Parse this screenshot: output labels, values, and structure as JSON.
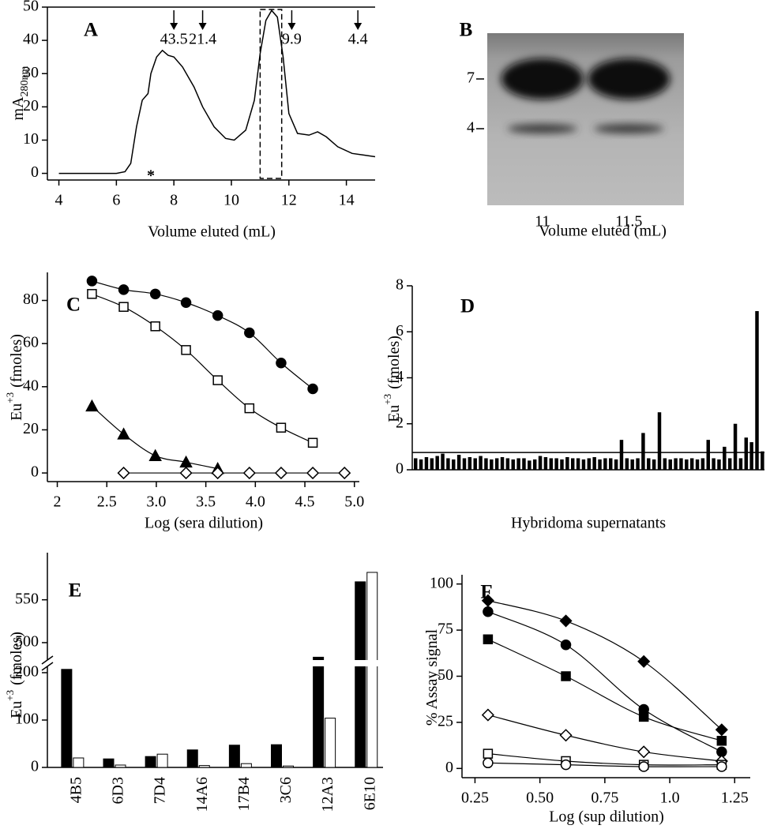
{
  "chart_data": [
    {
      "type": "line",
      "label": "A",
      "ylabel": "mA",
      "ylabel_sub": "280nm",
      "xlabel": "Volume eluted (mL)",
      "x": [
        4,
        5,
        6,
        6.3,
        6.5,
        6.7,
        6.9,
        7.1,
        7.2,
        7.4,
        7.6,
        7.8,
        8.0,
        8.3,
        8.7,
        9.0,
        9.4,
        9.8,
        10.1,
        10.5,
        10.8,
        11.0,
        11.2,
        11.4,
        11.6,
        11.8,
        12.0,
        12.3,
        12.7,
        13.0,
        13.3,
        13.7,
        14.2,
        14.6,
        15
      ],
      "values": [
        0,
        0,
        0,
        0.5,
        3,
        14,
        22,
        24,
        30,
        35,
        37,
        35.5,
        35,
        32,
        26,
        20,
        14,
        10.5,
        10,
        13,
        22,
        36,
        46,
        49,
        47,
        35,
        18,
        12,
        11.5,
        12.5,
        11,
        8,
        6,
        5.5,
        5
      ],
      "color": "#000000",
      "xlim": [
        3.6,
        15
      ],
      "xticks": [
        4,
        6,
        8,
        10,
        12,
        14
      ],
      "ylim": [
        -2,
        50
      ],
      "yticks": [
        0,
        10,
        20,
        30,
        40,
        50
      ],
      "markers": [
        {
          "x": 8.0,
          "label": "43.5"
        },
        {
          "x": 9.0,
          "label": "21.4"
        },
        {
          "x": 12.1,
          "label": "9.9"
        },
        {
          "x": 14.4,
          "label": "4.4"
        }
      ],
      "asterisk": {
        "x": 7.2,
        "label": "*"
      },
      "highlight": [
        11,
        11.75
      ]
    },
    {
      "type": "gel",
      "label": "B",
      "categories": [
        "11",
        "11.5"
      ],
      "markers": [
        7,
        4
      ],
      "xlabel": "Volume eluted (mL)"
    },
    {
      "type": "scatter",
      "label": "C",
      "ylabel": "Eu",
      "ylabel_sup": "+3",
      "ylabel_tail": "(fmoles)",
      "xlabel": "Log (sera dilution)",
      "xlim": [
        1.9,
        5.05
      ],
      "xticks": [
        2,
        2.5,
        {
          "value": 3,
          "label": "3.0"
        },
        3.5,
        {
          "value": 4,
          "label": "4.0"
        },
        4.5,
        {
          "value": 5,
          "label": "5.0"
        }
      ],
      "ylim": [
        -4,
        93
      ],
      "yticks": [
        0,
        20,
        40,
        60,
        80
      ],
      "series": [
        {
          "marker": "circle",
          "filled": true,
          "color": "#000000",
          "x": [
            2.35,
            2.67,
            2.99,
            3.3,
            3.62,
            3.94,
            4.26,
            4.58
          ],
          "values": [
            89,
            85,
            83,
            79,
            73,
            65,
            51,
            39
          ]
        },
        {
          "marker": "square",
          "filled": false,
          "color": "#000000",
          "x": [
            2.35,
            2.67,
            2.99,
            3.3,
            3.62,
            3.94,
            4.26,
            4.58
          ],
          "values": [
            83,
            77,
            68,
            57,
            43,
            30,
            21,
            14
          ]
        },
        {
          "marker": "triangle",
          "filled": true,
          "color": "#000000",
          "x": [
            2.35,
            2.67,
            2.99,
            3.3,
            3.62
          ],
          "values": [
            31,
            18,
            8,
            5,
            2
          ]
        },
        {
          "marker": "diamond",
          "filled": false,
          "color": "#000000",
          "x": [
            2.67,
            3.3,
            3.62,
            3.94,
            4.26,
            4.58,
            4.9
          ],
          "values": [
            0,
            0,
            0,
            0,
            0,
            0,
            0
          ]
        }
      ]
    },
    {
      "type": "bar",
      "label": "D",
      "ylabel": "Eu",
      "ylabel_sup": "+3",
      "ylabel_tail": "(fmoles)",
      "xlabel": "Hybridoma supernatants",
      "values": [
        0.5,
        0.45,
        0.55,
        0.5,
        0.6,
        0.7,
        0.5,
        0.45,
        0.65,
        0.5,
        0.55,
        0.5,
        0.6,
        0.5,
        0.45,
        0.5,
        0.55,
        0.5,
        0.45,
        0.5,
        0.5,
        0.4,
        0.45,
        0.6,
        0.55,
        0.5,
        0.5,
        0.45,
        0.55,
        0.5,
        0.5,
        0.45,
        0.5,
        0.55,
        0.45,
        0.5,
        0.5,
        0.45,
        1.3,
        0.5,
        0.45,
        0.5,
        1.6,
        0.5,
        0.45,
        2.5,
        0.5,
        0.45,
        0.5,
        0.5,
        0.45,
        0.5,
        0.45,
        0.5,
        1.3,
        0.5,
        0.45,
        1.0,
        0.5,
        2.0,
        0.5,
        1.4,
        1.2,
        6.9,
        0.8
      ],
      "color": "#000000",
      "threshold": 0.75,
      "ylim": [
        0,
        8
      ],
      "yticks": [
        0,
        2,
        4,
        6,
        8
      ]
    },
    {
      "type": "bar",
      "label": "E",
      "ylabel": "Eu",
      "ylabel_sup": "+3",
      "ylabel_tail": "(fmoles)",
      "categories": [
        "4B5",
        "6D3",
        "7D4",
        "14A6",
        "17B4",
        "3C6",
        "12A3",
        "6E10"
      ],
      "series": [
        {
          "color": "#000000",
          "values": [
            207,
            18,
            23,
            37,
            47,
            48,
            483,
            571
          ]
        },
        {
          "color": "#ffffff",
          "values": [
            20,
            5,
            28,
            4,
            8,
            3,
            104,
            582
          ]
        }
      ],
      "ylim": [
        0,
        605
      ],
      "ybreak": [
        220,
        476
      ],
      "yticks": [
        0,
        100,
        200,
        500,
        550
      ]
    },
    {
      "type": "scatter",
      "label": "F",
      "ylabel": "% Assay signal",
      "xlabel": "Log (sup dilution)",
      "xlim": [
        0.2,
        1.31
      ],
      "xticks": [
        0.25,
        {
          "value": 0.5,
          "label": "0.50"
        },
        0.75,
        {
          "value": 1,
          "label": "1.0"
        },
        1.25
      ],
      "ylim": [
        -5,
        105
      ],
      "yticks": [
        0,
        25,
        50,
        75,
        100
      ],
      "series": [
        {
          "marker": "diamond",
          "filled": true,
          "color": "#000000",
          "x": [
            0.3,
            0.6,
            0.9,
            1.2
          ],
          "values": [
            91,
            80,
            58,
            21
          ]
        },
        {
          "marker": "circle",
          "filled": true,
          "color": "#000000",
          "x": [
            0.3,
            0.6,
            0.9,
            1.2
          ],
          "values": [
            85,
            67,
            32,
            9
          ]
        },
        {
          "marker": "square",
          "filled": true,
          "color": "#000000",
          "x": [
            0.3,
            0.6,
            0.9,
            1.2
          ],
          "values": [
            70,
            50,
            28,
            15
          ]
        },
        {
          "marker": "diamond",
          "filled": false,
          "color": "#000000",
          "x": [
            0.3,
            0.6,
            0.9,
            1.2
          ],
          "values": [
            29,
            18,
            9,
            4
          ]
        },
        {
          "marker": "square",
          "filled": false,
          "color": "#000000",
          "x": [
            0.3,
            0.6,
            0.9,
            1.2
          ],
          "values": [
            8,
            4,
            2,
            2
          ]
        },
        {
          "marker": "circle",
          "filled": false,
          "color": "#000000",
          "x": [
            0.3,
            0.6,
            0.9,
            1.2
          ],
          "values": [
            3,
            2,
            1,
            1
          ]
        }
      ]
    }
  ]
}
